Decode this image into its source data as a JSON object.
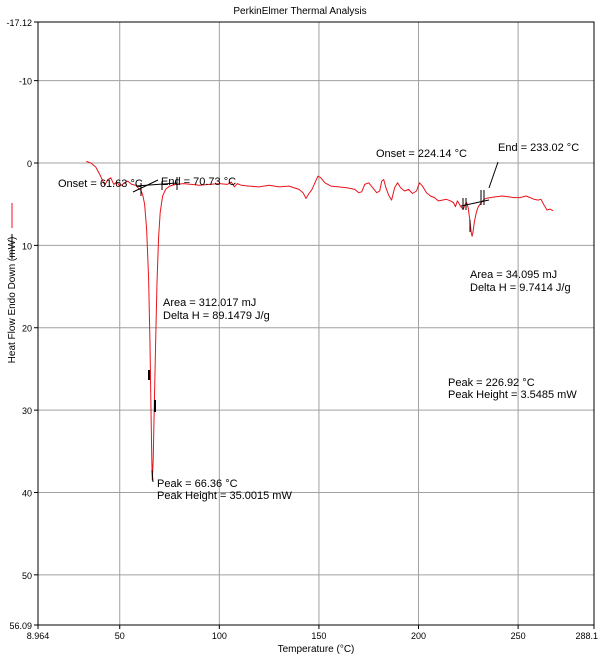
{
  "chart_data": {
    "type": "line",
    "title": "PerkinElmer Thermal Analysis",
    "xlabel": "Temperature (°C)",
    "ylabel": "Heat Flow Endo Down (mW)",
    "xlim": [
      8.964,
      288.1
    ],
    "ylim": [
      -17.12,
      56.09
    ],
    "y_inverted": true,
    "grid": true,
    "x_ticks": [
      {
        "value": 8.964,
        "label": "8.964"
      },
      {
        "value": 50,
        "label": "50"
      },
      {
        "value": 100,
        "label": "100"
      },
      {
        "value": 150,
        "label": "150"
      },
      {
        "value": 200,
        "label": "200"
      },
      {
        "value": 250,
        "label": "250"
      },
      {
        "value": 288.1,
        "label": "288.1"
      }
    ],
    "y_ticks": [
      {
        "value": -17.12,
        "label": "-17.12"
      },
      {
        "value": -10,
        "label": "-10"
      },
      {
        "value": 0,
        "label": "0"
      },
      {
        "value": 10,
        "label": "10"
      },
      {
        "value": 20,
        "label": "20"
      },
      {
        "value": 30,
        "label": "30"
      },
      {
        "value": 40,
        "label": "40"
      },
      {
        "value": 50,
        "label": "50"
      },
      {
        "value": 56.09,
        "label": "56.09"
      }
    ],
    "series": [
      {
        "color": "#e8141c",
        "points": [
          [
            33.2,
            -0.2
          ],
          [
            35.5,
            0.0
          ],
          [
            38,
            0.5
          ],
          [
            40,
            1.4
          ],
          [
            41.5,
            2.2
          ],
          [
            42.5,
            2.7
          ],
          [
            44,
            2.0
          ],
          [
            45.5,
            1.8
          ],
          [
            47,
            2.6
          ],
          [
            48.5,
            2.3
          ],
          [
            50,
            2.8
          ],
          [
            52,
            2.5
          ],
          [
            54,
            2.2
          ],
          [
            56,
            2.6
          ],
          [
            58,
            2.7
          ],
          [
            59.5,
            3.1
          ],
          [
            60.5,
            3.3
          ],
          [
            61.5,
            3.8
          ],
          [
            62.5,
            5.0
          ],
          [
            63.5,
            8.0
          ],
          [
            64.5,
            14.0
          ],
          [
            65.2,
            22.0
          ],
          [
            65.7,
            30.0
          ],
          [
            66.1,
            36.0
          ],
          [
            66.36,
            38.5
          ],
          [
            66.8,
            36.0
          ],
          [
            67.3,
            30.0
          ],
          [
            68,
            22.0
          ],
          [
            68.7,
            14.5
          ],
          [
            69.5,
            9.0
          ],
          [
            70.3,
            6.0
          ],
          [
            71.5,
            4.0
          ],
          [
            73,
            3.2
          ],
          [
            75,
            2.8
          ],
          [
            78,
            2.6
          ],
          [
            82,
            2.5
          ],
          [
            86,
            2.6
          ],
          [
            90,
            2.7
          ],
          [
            95,
            2.6
          ],
          [
            100,
            2.5
          ],
          [
            104,
            2.6
          ],
          [
            106,
            2.3
          ],
          [
            107.5,
            2.9
          ],
          [
            109,
            2.5
          ],
          [
            111,
            2.7
          ],
          [
            115,
            2.8
          ],
          [
            120,
            2.9
          ],
          [
            125,
            2.7
          ],
          [
            130,
            2.9
          ],
          [
            135,
            2.8
          ],
          [
            140,
            3.2
          ],
          [
            142,
            3.6
          ],
          [
            143.5,
            4.3
          ],
          [
            145,
            3.7
          ],
          [
            146.5,
            3.2
          ],
          [
            148,
            2.4
          ],
          [
            149.5,
            1.6
          ],
          [
            151,
            1.8
          ],
          [
            153,
            2.4
          ],
          [
            156,
            2.8
          ],
          [
            160,
            2.9
          ],
          [
            164,
            3.0
          ],
          [
            168,
            3.2
          ],
          [
            170,
            3.6
          ],
          [
            171.5,
            3.5
          ],
          [
            173,
            2.6
          ],
          [
            175,
            2.4
          ],
          [
            177,
            3.0
          ],
          [
            179,
            3.6
          ],
          [
            180.5,
            3.4
          ],
          [
            181.5,
            2.2
          ],
          [
            182.5,
            2.0
          ],
          [
            183.5,
            2.9
          ],
          [
            185,
            3.9
          ],
          [
            186.5,
            4.5
          ],
          [
            188,
            3.0
          ],
          [
            189.5,
            2.4
          ],
          [
            191,
            3.0
          ],
          [
            193,
            3.4
          ],
          [
            195,
            3.2
          ],
          [
            197,
            3.7
          ],
          [
            199,
            3.4
          ],
          [
            200.5,
            2.4
          ],
          [
            202,
            2.8
          ],
          [
            204,
            3.6
          ],
          [
            206,
            4.0
          ],
          [
            208,
            4.2
          ],
          [
            210,
            4.6
          ],
          [
            212,
            4.5
          ],
          [
            214,
            4.4
          ],
          [
            216,
            4.6
          ],
          [
            217.5,
            4.8
          ],
          [
            218.5,
            5.3
          ],
          [
            219.5,
            4.6
          ],
          [
            220.5,
            5.0
          ],
          [
            221.5,
            5.4
          ],
          [
            222.5,
            5.6
          ],
          [
            223.5,
            5.0
          ],
          [
            224.2,
            4.8
          ],
          [
            225,
            5.5
          ],
          [
            225.8,
            7.0
          ],
          [
            226.5,
            8.5
          ],
          [
            226.92,
            8.9
          ],
          [
            227.4,
            8.3
          ],
          [
            228,
            7.2
          ],
          [
            229,
            6.0
          ],
          [
            230,
            5.3
          ],
          [
            231.2,
            4.9
          ],
          [
            232.2,
            4.6
          ],
          [
            233,
            4.4
          ],
          [
            234,
            4.3
          ],
          [
            236,
            4.2
          ],
          [
            239,
            4.1
          ],
          [
            242,
            4.0
          ],
          [
            245,
            4.1
          ],
          [
            248,
            4.2
          ],
          [
            251,
            4.2
          ],
          [
            254,
            4.0
          ],
          [
            256,
            4.2
          ],
          [
            258,
            4.4
          ],
          [
            260,
            4.5
          ],
          [
            261.5,
            4.4
          ],
          [
            263,
            5.1
          ],
          [
            264.5,
            5.7
          ],
          [
            266,
            5.6
          ],
          [
            267.5,
            5.8
          ]
        ]
      }
    ],
    "analysis_markers": [
      {
        "series": "peak1",
        "x1": 58.0,
        "y1": 2.9,
        "x2": 77.5,
        "y2": 2.5
      },
      {
        "series": "peak1",
        "x1": 56.5,
        "y1": 3.7,
        "x2": 71.5,
        "y2": 2.2
      },
      {
        "series": "peak2",
        "x1": 220.0,
        "y1": 5.7,
        "x2": 233.5,
        "y2": 4.1
      }
    ],
    "annotations": {
      "onset1": "Onset = 61.63 °C",
      "end1": "End = 70.73 °C",
      "area1": "Area = 312.017 mJ",
      "delta1": "Delta H = 89.1479 J/g",
      "peak1": "Peak = 66.36 °C",
      "height1": "Peak Height = 35.0015 mW",
      "onset2": "Onset = 224.14 °C",
      "end2": "End = 233.02 °C",
      "area2": "Area = 34.095 mJ",
      "delta2": "Delta H = 9.7414 J/g",
      "peak2": "Peak = 226.92 °C",
      "height2": "Peak Height = 3.5485 mW"
    }
  }
}
